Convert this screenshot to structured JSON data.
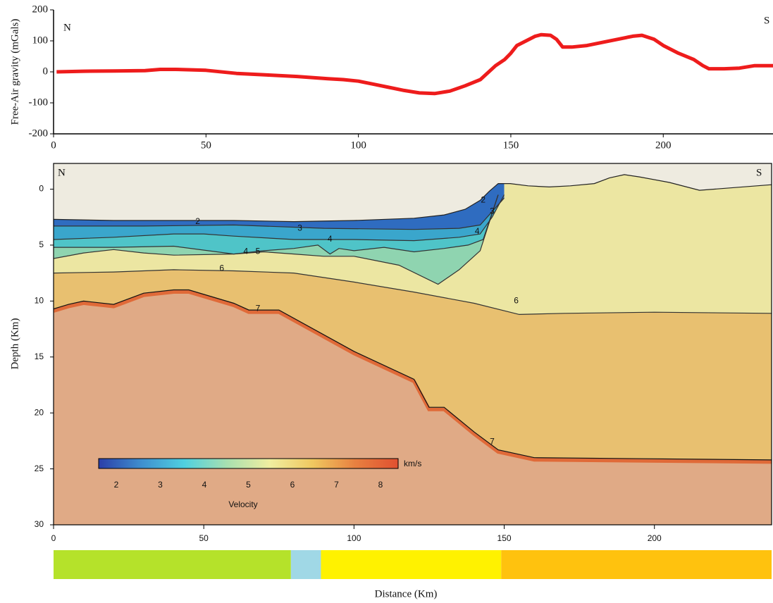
{
  "chart_data": [
    {
      "type": "line",
      "y_label": "Free-Air gravity (mGals)",
      "annotations": [
        "N",
        "S"
      ],
      "x": [
        1,
        10,
        20,
        30,
        35,
        40,
        50,
        60,
        70,
        80,
        90,
        95,
        100,
        105,
        110,
        115,
        120,
        125,
        130,
        135,
        140,
        145,
        148,
        150,
        152,
        155,
        158,
        160,
        163,
        165,
        167,
        170,
        175,
        180,
        185,
        190,
        193,
        197,
        200,
        205,
        210,
        213,
        215,
        220,
        225,
        230,
        236
      ],
      "series": [
        {
          "color": "#ee1c1c",
          "values": [
            0,
            2,
            3,
            4,
            8,
            8,
            5,
            -5,
            -10,
            -15,
            -22,
            -25,
            -30,
            -40,
            -50,
            -60,
            -68,
            -70,
            -62,
            -45,
            -25,
            20,
            40,
            60,
            85,
            100,
            115,
            120,
            118,
            105,
            80,
            80,
            85,
            95,
            105,
            115,
            118,
            105,
            85,
            60,
            40,
            20,
            10,
            10,
            12,
            20,
            20
          ]
        }
      ],
      "xlim": [
        0,
        236
      ],
      "ylim": [
        -200,
        200
      ],
      "xticks": [
        0,
        50,
        100,
        150,
        200
      ],
      "yticks": [
        -200,
        -100,
        0,
        100,
        200
      ]
    },
    {
      "type": "section",
      "x_label": "Distance (Km)",
      "y_label": "Depth (Km)",
      "annotations": [
        "N",
        "S"
      ],
      "xlim": [
        0,
        239
      ],
      "ylim": [
        30,
        -2.3
      ],
      "xticks": [
        0,
        50,
        100,
        150,
        200
      ],
      "yticks": [
        0,
        5,
        10,
        15,
        20,
        25,
        30
      ],
      "base_color": "#e0aa86",
      "boundaries": [
        {
          "fill": "#e8c070",
          "line": "#111111",
          "edge": "#e06a38",
          "x": [
            0,
            5,
            10,
            20,
            30,
            40,
            45,
            60,
            65,
            75,
            100,
            120,
            125,
            130,
            140,
            148,
            160,
            239
          ],
          "values": [
            10.7,
            10.3,
            10.0,
            10.3,
            9.3,
            9.0,
            9.0,
            10.2,
            10.8,
            10.8,
            14.5,
            17.0,
            19.5,
            19.5,
            21.7,
            23.3,
            24.0,
            24.2
          ]
        },
        {
          "fill": "#ece6a2",
          "line": "#333333",
          "x": [
            0,
            20,
            40,
            60,
            80,
            100,
            120,
            140,
            155,
            170,
            200,
            239
          ],
          "values": [
            7.5,
            7.4,
            7.2,
            7.3,
            7.5,
            8.3,
            9.2,
            10.2,
            11.2,
            11.1,
            11.0,
            11.1
          ]
        },
        {
          "fill": "#8fd4b0",
          "line": "#333333",
          "x": [
            0,
            10,
            20,
            30,
            40,
            60,
            70,
            80,
            90,
            100,
            115,
            128,
            135,
            142,
            148
          ],
          "values": [
            6.2,
            5.7,
            5.4,
            5.7,
            5.9,
            5.8,
            5.6,
            5.8,
            6.0,
            6.0,
            6.8,
            8.5,
            7.2,
            5.5,
            0.5
          ]
        },
        {
          "fill": "#4fc4c8",
          "line": "#333333",
          "x": [
            0,
            20,
            40,
            60,
            70,
            80,
            88,
            92,
            95,
            100,
            110,
            120,
            130,
            138,
            143,
            148
          ],
          "values": [
            5.2,
            5.2,
            5.1,
            5.8,
            5.5,
            5.3,
            5.0,
            5.8,
            5.3,
            5.5,
            5.2,
            5.6,
            5.3,
            5.0,
            4.5,
            0.5
          ]
        },
        {
          "fill": "#3aa6cc",
          "line": "#333333",
          "x": [
            0,
            20,
            40,
            50,
            60,
            80,
            100,
            120,
            135,
            142,
            146,
            150
          ],
          "values": [
            4.5,
            4.3,
            4.0,
            4.0,
            4.2,
            4.5,
            4.5,
            4.6,
            4.3,
            4.0,
            2.5,
            0.5
          ]
        },
        {
          "fill": "#2f6cc0",
          "line": "#333333",
          "x": [
            0,
            30,
            60,
            90,
            120,
            135,
            142,
            146,
            150
          ],
          "values": [
            3.3,
            3.3,
            3.2,
            3.5,
            3.6,
            3.5,
            3.2,
            2.0,
            0.8
          ]
        },
        {
          "fill": "#eeebe0",
          "line": "#222222",
          "x": [
            0,
            20,
            40,
            60,
            80,
            100,
            120,
            130,
            137,
            142,
            145,
            148,
            152,
            158,
            165,
            172,
            180,
            185,
            190,
            195,
            205,
            215,
            239
          ],
          "values": [
            2.7,
            2.8,
            2.8,
            2.8,
            2.9,
            2.8,
            2.6,
            2.3,
            1.8,
            1.0,
            0.2,
            -0.5,
            -0.5,
            -0.3,
            -0.2,
            -0.3,
            -0.5,
            -1.0,
            -1.3,
            -1.1,
            -0.6,
            0.1,
            -0.4
          ]
        }
      ],
      "contour_labels": [
        {
          "text": "2",
          "x": 48,
          "y": 2.9
        },
        {
          "text": "3",
          "x": 82,
          "y": 3.5
        },
        {
          "text": "4",
          "x": 92,
          "y": 4.5
        },
        {
          "text": "4",
          "x": 64,
          "y": 5.6
        },
        {
          "text": "5",
          "x": 68,
          "y": 5.6
        },
        {
          "text": "6",
          "x": 56,
          "y": 7.1
        },
        {
          "text": "7",
          "x": 68,
          "y": 10.7
        },
        {
          "text": "6",
          "x": 154,
          "y": 10.0
        },
        {
          "text": "7",
          "x": 146,
          "y": 22.6
        },
        {
          "text": "2",
          "x": 143,
          "y": 1.0
        },
        {
          "text": "3",
          "x": 146,
          "y": 2.0
        },
        {
          "text": "4",
          "x": 141,
          "y": 3.8
        }
      ],
      "colorbar": {
        "label": "Velocity",
        "unit": "km/s",
        "range": [
          1.6,
          8.4
        ],
        "ticks": [
          2,
          3,
          4,
          5,
          6,
          7,
          8
        ],
        "colors": [
          "#2a3ea8",
          "#3f8fcf",
          "#4fd0e0",
          "#a8e0b0",
          "#f0eea0",
          "#f0c860",
          "#e88040",
          "#e05030"
        ]
      },
      "segments": [
        {
          "x": [
            0,
            79
          ],
          "color": "#b5e22a"
        },
        {
          "x": [
            79,
            89
          ],
          "color": "#a0d8e6"
        },
        {
          "x": [
            89,
            149
          ],
          "color": "#fff200"
        },
        {
          "x": [
            149,
            239
          ],
          "color": "#ffc20e"
        }
      ]
    }
  ]
}
